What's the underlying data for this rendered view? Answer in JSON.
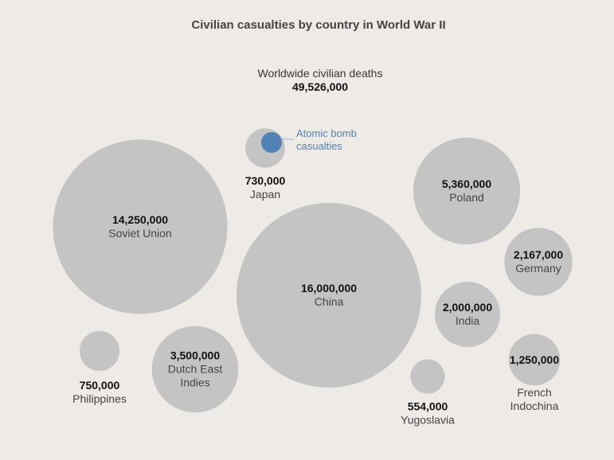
{
  "chart_data": {
    "type": "bubble",
    "title": "Civilian casualties by country in World War II",
    "total_label": "Worldwide civilian deaths",
    "total_value": "49,526,000",
    "bubble_color": "#c4c4c4",
    "highlight_color": "#4f83b5",
    "annotation": [
      "Atomic bomb",
      "casualties"
    ],
    "points": [
      {
        "name": [
          "Soviet Union"
        ],
        "value": 14250000,
        "label": "14,250,000"
      },
      {
        "name": [
          "China"
        ],
        "value": 16000000,
        "label": "16,000,000"
      },
      {
        "name": [
          "Japan"
        ],
        "value": 730000,
        "label": "730,000"
      },
      {
        "name": [
          "Poland"
        ],
        "value": 5360000,
        "label": "5,360,000"
      },
      {
        "name": [
          "Germany"
        ],
        "value": 2167000,
        "label": "2,167,000"
      },
      {
        "name": [
          "India"
        ],
        "value": 2000000,
        "label": "2,000,000"
      },
      {
        "name": [
          "French",
          "Indochina"
        ],
        "value": 1250000,
        "label": "1,250,000"
      },
      {
        "name": [
          "Yugoslavia"
        ],
        "value": 554000,
        "label": "554,000"
      },
      {
        "name": [
          "Dutch East",
          "Indies"
        ],
        "value": 3500000,
        "label": "3,500,000"
      },
      {
        "name": [
          "Philippines"
        ],
        "value": 750000,
        "label": "750,000"
      }
    ]
  }
}
